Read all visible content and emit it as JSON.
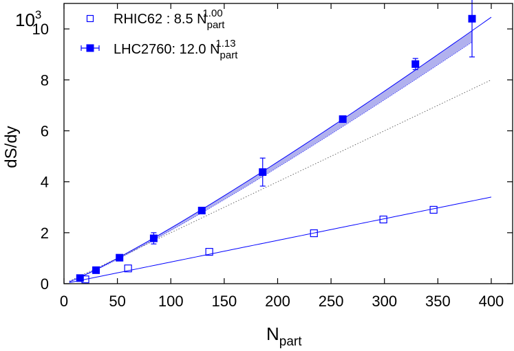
{
  "chart_data": {
    "type": "scatter",
    "xlabel": "N",
    "xlabel_sub": "part",
    "ylabel": "dS/dy",
    "y_unit_base": "10",
    "y_unit_exp": "3",
    "xlim": [
      0,
      420
    ],
    "ylim": [
      0,
      11
    ],
    "x_ticks": [
      0,
      50,
      100,
      150,
      200,
      250,
      300,
      350,
      400
    ],
    "y_ticks": [
      0,
      2,
      4,
      6,
      8,
      10
    ],
    "grid": false,
    "legend_position": "top-left",
    "series": [
      {
        "name": "RHIC62  : 8.5 N",
        "name_sub": "part",
        "name_sup": "1.00",
        "marker": "open-square",
        "color": "#0000ff",
        "x": [
          20,
          60,
          136,
          234,
          299,
          346
        ],
        "y": [
          0.17,
          0.6,
          1.25,
          1.98,
          2.52,
          2.9
        ],
        "fit": {
          "coef": 8.5,
          "exp": 1.0,
          "x_range": [
            5,
            400
          ]
        }
      },
      {
        "name": "LHC2760: 12.0 N",
        "name_sub": "part",
        "name_sup": "1.13",
        "marker": "filled-square",
        "color": "#0000ff",
        "x": [
          15,
          30,
          52,
          84,
          129,
          186,
          261,
          329,
          382
        ],
        "y": [
          0.22,
          0.53,
          1.02,
          1.78,
          2.87,
          4.38,
          6.46,
          8.62,
          10.4
        ],
        "yerr": [
          0.05,
          0.04,
          0.08,
          0.22,
          0.08,
          0.55,
          0.1,
          0.22,
          1.5
        ],
        "fit": {
          "coef": 12.0,
          "exp": 1.13,
          "x_range": [
            5,
            400
          ]
        },
        "linear_reference": {
          "slope": 0.02,
          "x_range": [
            5,
            400
          ]
        }
      }
    ]
  },
  "colors": {
    "series": "#0000ff",
    "band_fill": "#a8a8ec",
    "reference_line": "#555555"
  }
}
